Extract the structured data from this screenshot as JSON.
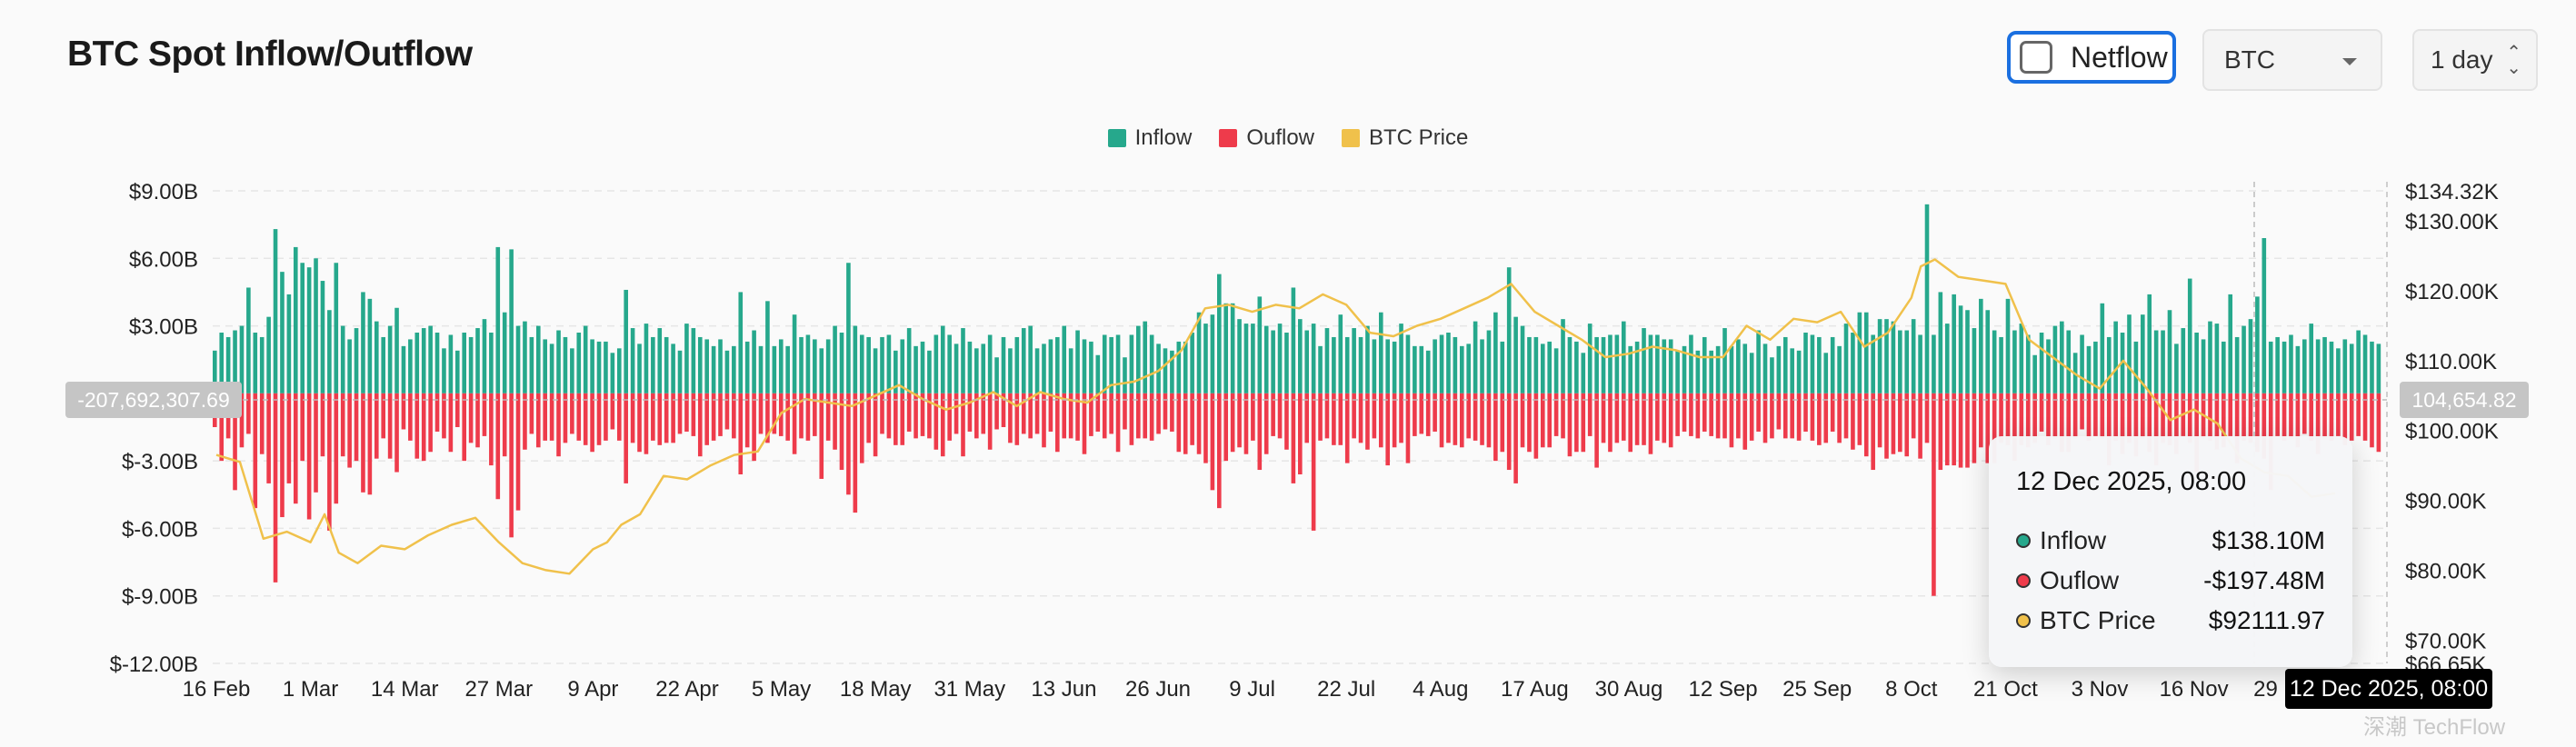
{
  "header": {
    "title": "BTC Spot Inflow/Outflow"
  },
  "controls": {
    "netflow_label": "Netflow",
    "netflow_checked": false,
    "asset_select": "BTC",
    "interval_select": "1 day"
  },
  "colors": {
    "inflow": "#26a88c",
    "outflow": "#ee3b4b",
    "price": "#f0c14b",
    "accent": "#1a6fe0"
  },
  "icons": {
    "checkbox": "checkbox-unchecked-icon",
    "select_caret": "chevron-down-icon",
    "interval_stepper": "up-down-arrows-icon"
  },
  "tooltip": {
    "title": "12 Dec 2025, 08:00",
    "rows": [
      {
        "name": "Inflow",
        "value": "$138.10M",
        "color": "#26a88c"
      },
      {
        "name": "Ouflow",
        "value": "-$197.48M",
        "color": "#ee3b4b"
      },
      {
        "name": "BTC Price",
        "value": "$92111.97",
        "color": "#f0c14b"
      }
    ]
  },
  "crosshair": {
    "x_label": "12 Dec 2025, 08:00",
    "y_left_label": "-207,692,307.69",
    "y_right_label": "104,654.82"
  },
  "watermark": "深潮 TechFlow",
  "chart_data": {
    "type": "bar",
    "title": "BTC Spot Inflow/Outflow",
    "legend": [
      "Inflow",
      "Ouflow",
      "BTC Price"
    ],
    "legend_position": "top-center",
    "grid": true,
    "x_tick_labels": [
      "16 Feb",
      "1 Mar",
      "14 Mar",
      "27 Mar",
      "9 Apr",
      "22 Apr",
      "5 May",
      "18 May",
      "31 May",
      "13 Jun",
      "26 Jun",
      "9 Jul",
      "22 Jul",
      "4 Aug",
      "17 Aug",
      "30 Aug",
      "12 Sep",
      "25 Sep",
      "8 Oct",
      "21 Oct",
      "3 Nov",
      "16 Nov",
      "29 Nov"
    ],
    "y_left": {
      "unit": "USD",
      "ylim": [
        -12,
        9
      ],
      "ticks": [
        9,
        6,
        3,
        0,
        -3,
        -6,
        -9,
        -12
      ],
      "tick_labels": [
        "$9.00B",
        "$6.00B",
        "$3.00B",
        "",
        "$-3.00B",
        "$-6.00B",
        "$-9.00B",
        "$-12.00B"
      ]
    },
    "y_right": {
      "ylim": [
        66650,
        134320
      ],
      "ticks": [
        134320,
        130000,
        120000,
        110000,
        100000,
        90000,
        80000,
        70000,
        66650
      ],
      "tick_labels": [
        "$134.32K",
        "$130.00K",
        "$120.00K",
        "$110.00K",
        "$100.00K",
        "$90.00K",
        "$80.00K",
        "$70.00K",
        "$66.65K"
      ]
    },
    "series": [
      {
        "name": "Inflow",
        "axis": "left",
        "unit": "$B",
        "values": [
          1.9,
          2.7,
          2.5,
          2.8,
          3.0,
          4.7,
          2.7,
          2.5,
          3.4,
          7.3,
          5.4,
          4.4,
          6.5,
          5.8,
          5.6,
          6.0,
          5.0,
          3.7,
          5.8,
          3.0,
          2.4,
          2.9,
          4.5,
          4.2,
          3.2,
          2.5,
          3.0,
          3.8,
          2.1,
          2.4,
          2.7,
          2.9,
          3.0,
          2.7,
          2.0,
          2.6,
          1.9,
          2.7,
          2.5,
          2.9,
          3.3,
          2.7,
          6.5,
          3.6,
          6.4,
          3.0,
          3.2,
          2.5,
          3.0,
          2.4,
          2.2,
          2.8,
          2.5,
          2.0,
          2.7,
          3.0,
          2.4,
          2.3,
          2.3,
          1.8,
          2.0,
          4.6,
          2.9,
          2.2,
          3.1,
          2.5,
          2.9,
          2.5,
          2.2,
          1.9,
          3.1,
          2.9,
          2.5,
          2.4,
          2.1,
          2.4,
          1.9,
          2.1,
          4.5,
          2.3,
          2.8,
          2.1,
          4.1,
          2.1,
          2.4,
          2.1,
          3.5,
          2.5,
          2.6,
          2.4,
          2.0,
          2.4,
          3.0,
          2.7,
          5.8,
          3.0,
          2.6,
          2.5,
          2.0,
          2.5,
          2.6,
          1.9,
          2.4,
          2.9,
          2.1,
          2.3,
          1.9,
          2.6,
          3.0,
          2.6,
          2.2,
          2.9,
          2.3,
          2.0,
          2.2,
          2.6,
          1.6,
          2.5,
          2.0,
          2.5,
          2.9,
          3.0,
          2.0,
          2.2,
          2.4,
          2.5,
          3.0,
          2.0,
          2.8,
          2.4,
          2.3,
          1.7,
          2.6,
          2.5,
          2.6,
          1.6,
          2.6,
          3.0,
          3.2,
          2.6,
          2.2,
          2.0,
          1.9,
          2.3,
          2.3,
          2.7,
          3.6,
          3.1,
          3.5,
          5.3,
          4.0,
          4.0,
          3.3,
          3.1,
          3.1,
          4.3,
          3.0,
          2.8,
          3.1,
          2.7,
          4.7,
          3.3,
          2.8,
          3.1,
          2.1,
          2.9,
          2.5,
          3.5,
          2.5,
          2.9,
          2.5,
          3.0,
          2.4,
          3.6,
          2.4,
          2.3,
          3.1,
          2.6,
          2.1,
          2.1,
          1.9,
          2.4,
          2.6,
          2.7,
          2.5,
          2.1,
          2.2,
          3.2,
          2.4,
          2.8,
          3.6,
          2.3,
          5.6,
          3.4,
          3.0,
          2.5,
          2.5,
          2.2,
          2.3,
          2.0,
          3.3,
          2.5,
          2.3,
          1.8,
          3.1,
          2.5,
          2.5,
          2.6,
          2.6,
          3.2,
          2.1,
          2.3,
          2.9,
          2.6,
          2.6,
          2.4,
          2.4,
          1.9,
          2.1,
          2.6,
          1.9,
          2.5,
          1.9,
          2.1,
          2.9,
          2.1,
          2.4,
          2.2,
          1.8,
          2.8,
          2.2,
          1.6,
          2.1,
          2.5,
          2.0,
          1.9,
          2.7,
          2.6,
          2.5,
          1.8,
          2.5,
          2.1,
          3.1,
          2.7,
          3.6,
          3.6,
          2.6,
          3.3,
          3.3,
          3.2,
          2.8,
          2.8,
          3.3,
          2.6,
          8.4,
          2.6,
          4.5,
          3.1,
          4.4,
          3.9,
          3.7,
          2.9,
          4.2,
          3.7,
          2.8,
          2.5,
          4.2,
          2.8,
          3.1,
          2.6,
          1.7,
          2.7,
          2.4,
          3.0,
          3.2,
          2.8,
          1.8,
          2.6,
          2.1,
          2.3,
          4.0,
          2.5,
          3.2,
          2.7,
          3.5,
          2.3,
          3.5,
          4.4,
          2.8,
          2.8,
          3.7,
          2.2,
          2.9,
          5.1,
          2.7,
          2.4,
          3.2,
          3.1,
          2.3,
          4.4,
          2.5,
          3.0,
          3.3,
          4.3,
          6.9,
          2.3,
          2.5,
          2.3,
          2.6,
          2.1,
          2.4,
          3.1,
          2.4,
          2.5,
          2.3,
          2.0,
          2.4,
          2.2,
          2.8,
          2.6,
          2.3,
          2.2
        ]
      },
      {
        "name": "Ouflow",
        "axis": "left",
        "unit": "$B",
        "values": [
          -1.5,
          -3.0,
          -2.0,
          -4.3,
          -2.4,
          -1.8,
          -5.1,
          -2.7,
          -4.0,
          -8.4,
          -5.5,
          -4.0,
          -4.9,
          -3.0,
          -5.6,
          -4.4,
          -2.8,
          -6.1,
          -4.9,
          -2.8,
          -3.3,
          -3.0,
          -4.4,
          -4.5,
          -2.9,
          -2.0,
          -2.9,
          -3.5,
          -1.6,
          -2.1,
          -2.9,
          -3.0,
          -2.6,
          -1.7,
          -2.0,
          -2.6,
          -1.5,
          -3.0,
          -2.2,
          -2.4,
          -1.9,
          -3.2,
          -4.7,
          -2.8,
          -6.4,
          -5.2,
          -2.5,
          -1.8,
          -2.4,
          -2.1,
          -2.1,
          -2.8,
          -2.2,
          -1.8,
          -2.1,
          -2.3,
          -2.6,
          -2.3,
          -2.1,
          -1.6,
          -2.1,
          -4.0,
          -2.2,
          -2.6,
          -2.7,
          -2.1,
          -2.3,
          -2.2,
          -2.2,
          -1.8,
          -1.7,
          -1.9,
          -2.8,
          -2.3,
          -2.1,
          -1.9,
          -1.6,
          -2.0,
          -3.6,
          -2.4,
          -3.0,
          -1.8,
          -2.2,
          -1.8,
          -1.9,
          -2.1,
          -2.7,
          -2.0,
          -2.1,
          -1.9,
          -3.8,
          -2.1,
          -2.5,
          -3.4,
          -4.5,
          -5.3,
          -3.1,
          -2.2,
          -2.8,
          -1.8,
          -2.0,
          -2.3,
          -2.3,
          -1.7,
          -2.0,
          -1.9,
          -2.0,
          -2.5,
          -2.8,
          -2.1,
          -1.8,
          -2.8,
          -1.7,
          -2.0,
          -1.8,
          -2.5,
          -1.6,
          -1.5,
          -2.2,
          -2.3,
          -1.8,
          -2.0,
          -1.8,
          -2.4,
          -1.7,
          -2.6,
          -2.0,
          -2.0,
          -2.1,
          -2.7,
          -1.9,
          -1.7,
          -2.0,
          -1.8,
          -2.6,
          -1.6,
          -2.3,
          -2.0,
          -2.0,
          -2.1,
          -1.8,
          -1.6,
          -1.7,
          -2.6,
          -2.7,
          -2.3,
          -2.7,
          -3.1,
          -4.3,
          -5.1,
          -3.0,
          -2.6,
          -2.4,
          -2.7,
          -2.1,
          -3.4,
          -2.7,
          -1.9,
          -2.0,
          -2.5,
          -4.0,
          -3.6,
          -2.2,
          -6.1,
          -2.1,
          -2.0,
          -2.3,
          -2.3,
          -3.1,
          -2.0,
          -2.2,
          -2.5,
          -2.0,
          -2.4,
          -3.2,
          -2.4,
          -2.2,
          -3.1,
          -1.9,
          -1.8,
          -1.9,
          -1.7,
          -2.4,
          -2.2,
          -2.3,
          -2.4,
          -2.0,
          -2.1,
          -2.3,
          -2.4,
          -3.0,
          -2.6,
          -3.4,
          -4.0,
          -2.4,
          -2.6,
          -2.9,
          -2.4,
          -2.4,
          -1.9,
          -2.0,
          -2.8,
          -2.6,
          -2.6,
          -1.9,
          -3.3,
          -2.2,
          -2.6,
          -2.2,
          -2.1,
          -2.6,
          -2.3,
          -2.3,
          -2.7,
          -2.1,
          -2.2,
          -2.4,
          -1.9,
          -1.7,
          -1.9,
          -2.0,
          -1.7,
          -1.9,
          -2.0,
          -2.0,
          -2.4,
          -2.0,
          -2.5,
          -2.1,
          -1.7,
          -2.2,
          -2.0,
          -1.6,
          -2.0,
          -2.0,
          -2.1,
          -1.7,
          -2.1,
          -2.3,
          -2.2,
          -1.7,
          -2.2,
          -2.0,
          -2.5,
          -2.3,
          -2.8,
          -3.4,
          -2.4,
          -2.9,
          -2.7,
          -2.6,
          -2.8,
          -2.0,
          -2.9,
          -2.2,
          -9.0,
          -3.4,
          -3.2,
          -3.2,
          -3.3,
          -3.3,
          -3.1,
          -2.4,
          -3.1,
          -3.1,
          -2.2,
          -2.3,
          -3.0,
          -2.3,
          -2.4,
          -2.2,
          -1.7,
          -2.3,
          -2.0,
          -2.6,
          -2.6,
          -2.0,
          -1.6,
          -2.1,
          -1.9,
          -2.0,
          -3.2,
          -2.1,
          -2.7,
          -2.2,
          -2.8,
          -2.0,
          -2.6,
          -3.2,
          -2.2,
          -2.3,
          -2.7,
          -1.9,
          -2.2,
          -3.5,
          -2.0,
          -2.1,
          -2.5,
          -2.4,
          -1.9,
          -3.1,
          -2.1,
          -2.2,
          -2.6,
          -2.9,
          -4.3,
          -1.9,
          -2.1,
          -2.0,
          -2.4,
          -1.8,
          -2.1,
          -2.7,
          -2.0,
          -2.1,
          -1.9,
          -2.3,
          -2.1,
          -1.9,
          -2.1,
          -2.4,
          -2.6,
          -2.4
        ]
      },
      {
        "name": "BTC Price",
        "axis": "right",
        "type": "line",
        "unit": "USD",
        "x_tick_index": [
          0,
          0.25,
          0.5,
          0.75,
          1,
          1.15,
          1.3,
          1.5,
          1.75,
          2,
          2.25,
          2.5,
          2.75,
          3,
          3.25,
          3.5,
          3.75,
          4,
          4.15,
          4.3,
          4.5,
          4.75,
          5,
          5.25,
          5.5,
          5.75,
          6,
          6.25,
          6.5,
          6.75,
          7,
          7.25,
          7.5,
          7.75,
          8,
          8.25,
          8.5,
          8.75,
          9,
          9.25,
          9.5,
          9.75,
          10,
          10.25,
          10.5,
          10.75,
          11,
          11.25,
          11.5,
          11.75,
          12,
          12.25,
          12.5,
          12.75,
          13,
          13.25,
          13.5,
          13.75,
          14,
          14.25,
          14.5,
          14.75,
          15,
          15.25,
          15.5,
          15.75,
          16,
          16.25,
          16.5,
          16.75,
          17,
          17.25,
          17.5,
          17.75,
          18,
          18.1,
          18.25,
          18.5,
          18.75,
          19,
          19.25,
          19.5,
          19.75,
          20,
          20.25,
          20.5,
          20.75,
          21,
          21.25,
          21.5,
          21.75,
          22,
          22.25,
          22.5
        ],
        "values": [
          96500,
          95500,
          84500,
          85500,
          84000,
          88000,
          82500,
          81000,
          83500,
          83000,
          85000,
          86500,
          87500,
          84000,
          81000,
          80000,
          79500,
          83000,
          84000,
          86500,
          88000,
          93500,
          93000,
          95000,
          96500,
          97000,
          102500,
          104500,
          104000,
          103500,
          105000,
          106500,
          104500,
          103000,
          104000,
          105500,
          103500,
          105500,
          104500,
          104000,
          106500,
          107000,
          108500,
          111500,
          117500,
          118000,
          117000,
          118000,
          117500,
          119500,
          118000,
          114000,
          113500,
          115000,
          116000,
          117500,
          119000,
          121000,
          117000,
          115000,
          113000,
          110500,
          111000,
          112000,
          111500,
          110500,
          110500,
          115000,
          113000,
          116000,
          115500,
          117000,
          112000,
          114000,
          119000,
          123500,
          124500,
          122000,
          121500,
          121000,
          113000,
          110500,
          108000,
          106000,
          110000,
          106000,
          101500,
          103000,
          101000,
          96000,
          94000,
          93500,
          90500,
          91000
        ]
      }
    ]
  }
}
